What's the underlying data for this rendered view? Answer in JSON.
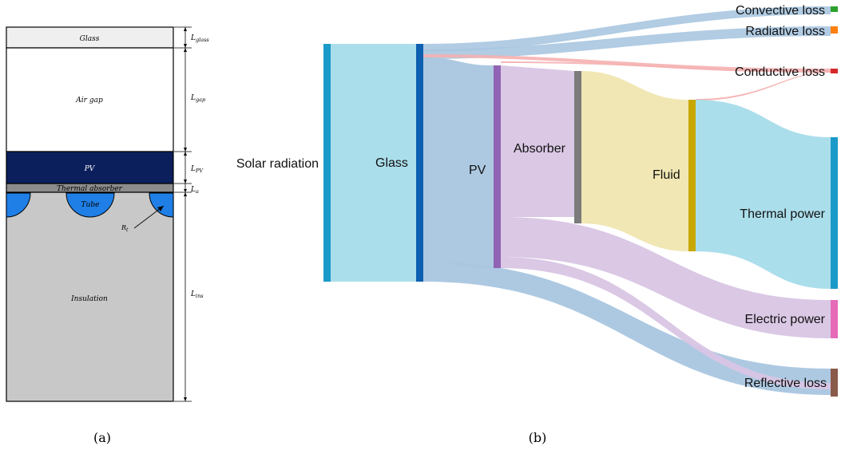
{
  "panel_a": {
    "caption": "(a)",
    "layers": {
      "glass": "Glass",
      "air_gap": "Air gap",
      "pv": "PV",
      "absorber": "Thermal absorber",
      "tube": "Tube",
      "insulation": "Insulation"
    },
    "dims": {
      "glass": {
        "main": "L",
        "sub": "glass"
      },
      "gap": {
        "main": "L",
        "sub": "gap"
      },
      "pv": {
        "main": "L",
        "sub": "PV"
      },
      "absorber": {
        "main": "L",
        "sub": "a"
      },
      "insulation": {
        "main": "L",
        "sub": "ins"
      },
      "tube_radius": {
        "main": "R",
        "sub": "t"
      }
    },
    "colors": {
      "glass": "#efefef",
      "pv": "#0b1f5c",
      "absorber": "#8c8c8c",
      "tube": "#1f7fe6",
      "insulation": "#c8c8c8"
    }
  },
  "panel_b": {
    "caption": "(b)",
    "nodes": {
      "solar": "Solar radiation",
      "glass": "Glass",
      "pv": "PV",
      "absorber": "Absorber",
      "fluid": "Fluid",
      "thermal": "Thermal power",
      "electric": "Electric power",
      "reflective": "Reflective loss",
      "convective": "Convective loss",
      "radiative": "Radiative loss",
      "conductive": "Conductive loss"
    },
    "colors": {
      "solar": "#1a9ac9",
      "glass": "#0d5fb0",
      "pv": "#9063b5",
      "absorber": "#7b7b7b",
      "fluid": "#c8a800",
      "thermal": "#1a9ac9",
      "electric": "#e66ab8",
      "reflective": "#8a5a4a",
      "convective": "#2ca02c",
      "radiative": "#ff7f0e",
      "conductive": "#d62728",
      "link_solar": "#a6dcea",
      "link_glass": "#a9c6e0",
      "link_pv": "#d8c5e4",
      "link_fluid": "#f0e6b0",
      "link_thermal": "#a6dcea",
      "link_conductive": "#f5b0b0"
    }
  }
}
